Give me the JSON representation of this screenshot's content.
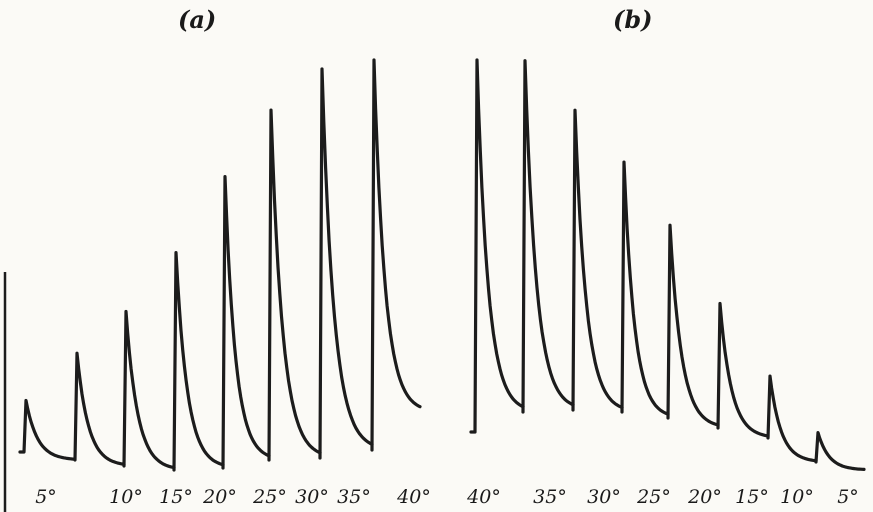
{
  "chart_data": [
    {
      "type": "line",
      "panel_label": "(a)",
      "title": "",
      "xlabel": "",
      "ylabel": "",
      "grid": false,
      "legend": "none",
      "description_of_marks": "successive sharp rise-and-decay responses, peak amplitude increasing with angle",
      "categories": [
        "5°",
        "10°",
        "15°",
        "20°",
        "25°",
        "30°",
        "35°",
        "40°"
      ],
      "peak_relative": [
        0.14,
        0.29,
        0.42,
        0.58,
        0.77,
        0.94,
        1.03,
        1.18
      ]
    },
    {
      "type": "line",
      "panel_label": "(b)",
      "title": "",
      "xlabel": "",
      "ylabel": "",
      "grid": false,
      "legend": "none",
      "categories": [
        "40°",
        "35°",
        "30°",
        "25°",
        "20°",
        "15°",
        "10°",
        "5°"
      ],
      "peak_relative": [
        1.07,
        0.96,
        0.82,
        0.69,
        0.54,
        0.36,
        0.19,
        0.08
      ]
    }
  ],
  "colors": {
    "trace": "#1c1c1c",
    "paper": "#fbfaf6"
  }
}
